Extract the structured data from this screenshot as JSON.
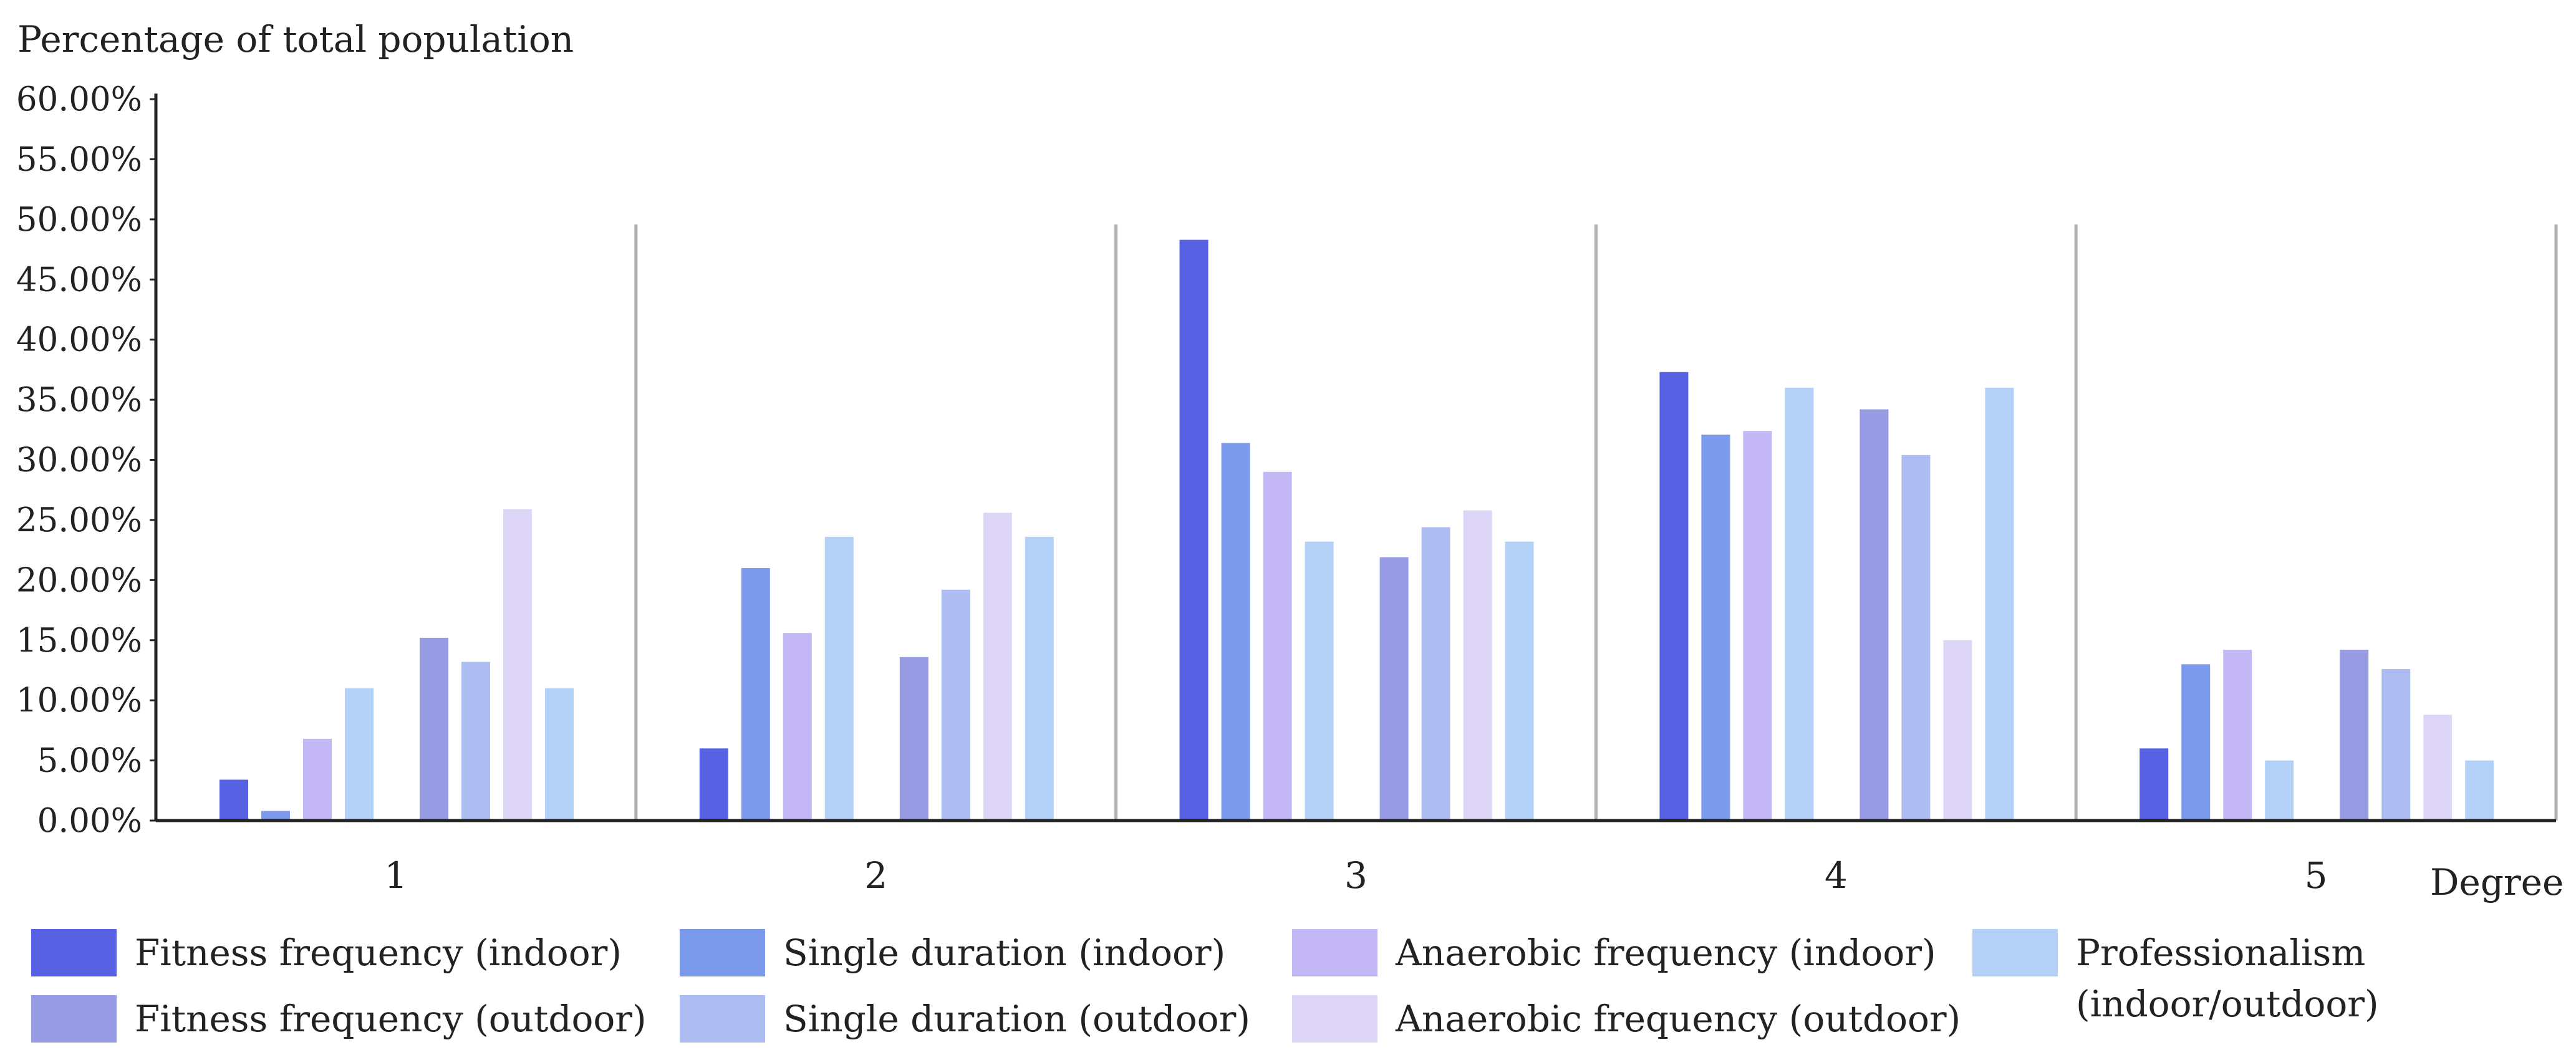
{
  "chart_data": {
    "type": "bar",
    "ylabel": "Percentage of total population",
    "xlabel": "Degree",
    "ylim": [
      0,
      60
    ],
    "yticks": [
      "0.00%",
      "5.00%",
      "10.00%",
      "15.00%",
      "20.00%",
      "25.00%",
      "30.00%",
      "35.00%",
      "40.00%",
      "45.00%",
      "50.00%",
      "55.00%",
      "60.00%"
    ],
    "categories": [
      "1",
      "2",
      "3",
      "4",
      "5"
    ],
    "legend_position": "bottom",
    "series": [
      {
        "name": "Fitness frequency (indoor)",
        "group": "indoor",
        "color": "#5761e3",
        "values": [
          3.4,
          6.0,
          48.3,
          37.3,
          6.0
        ]
      },
      {
        "name": "Single duration (indoor)",
        "group": "indoor",
        "color": "#7c9aec",
        "values": [
          0.8,
          21.0,
          31.4,
          32.1,
          13.0
        ]
      },
      {
        "name": "Anaerobic frequency (indoor)",
        "group": "indoor",
        "color": "#c3b7f6",
        "values": [
          6.8,
          15.6,
          29.0,
          32.4,
          14.2
        ]
      },
      {
        "name": "Professionalism (indoor/outdoor)",
        "group": "indoor",
        "color": "#b3d1f7",
        "values": [
          11.0,
          23.6,
          23.2,
          36.0,
          5.0
        ]
      },
      {
        "name": "Fitness frequency (outdoor)",
        "group": "outdoor",
        "color": "#979be3",
        "values": [
          15.2,
          13.6,
          21.9,
          34.2,
          14.2
        ]
      },
      {
        "name": "Single duration (outdoor)",
        "group": "outdoor",
        "color": "#adbdf2",
        "values": [
          13.2,
          19.2,
          24.4,
          30.4,
          12.6
        ]
      },
      {
        "name": "Anaerobic frequency (outdoor)",
        "group": "outdoor",
        "color": "#ddd6f7",
        "values": [
          25.9,
          25.6,
          25.8,
          15.0,
          8.8
        ]
      },
      {
        "name": "Professionalism (indoor/outdoor)",
        "group": "outdoor",
        "color": "#b3d1f7",
        "values": [
          11.0,
          23.6,
          23.2,
          36.0,
          5.0
        ]
      }
    ],
    "legend": [
      {
        "label": "Fitness frequency (indoor)",
        "color": "#5761e3"
      },
      {
        "label": "Fitness frequency (outdoor)",
        "color": "#979be3"
      },
      {
        "label": "Single duration (indoor)",
        "color": "#7c9aec"
      },
      {
        "label": "Single duration (outdoor)",
        "color": "#adbdf2"
      },
      {
        "label": "Anaerobic frequency (indoor)",
        "color": "#c3b7f6"
      },
      {
        "label": "Anaerobic frequency (outdoor)",
        "color": "#ddd6f7"
      },
      {
        "label_lines": [
          "Professionalism",
          "(indoor/outdoor)"
        ],
        "color": "#b3d1f7"
      }
    ]
  }
}
